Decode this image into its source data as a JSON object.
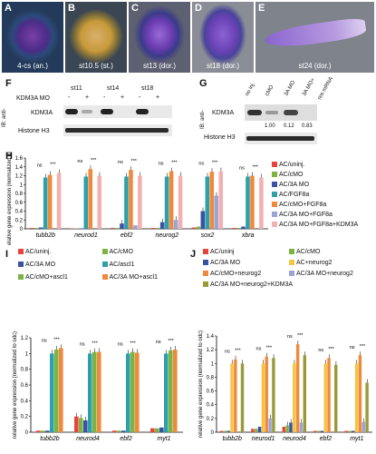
{
  "panels": {
    "A": {
      "letter": "A",
      "caption": "4-cs (an.)"
    },
    "B": {
      "letter": "B",
      "caption": "st10.5 (st.)"
    },
    "C": {
      "letter": "C",
      "caption": "st13 (dor.)"
    },
    "D": {
      "letter": "D",
      "caption": "st18 (dor.)"
    },
    "E": {
      "letter": "E",
      "caption": "st24 (dor.)"
    }
  },
  "F": {
    "letter": "F",
    "stages": [
      "st11",
      "st14",
      "st18"
    ],
    "mo_label": "KDM3A MO",
    "signs": [
      "-",
      "+",
      "-",
      "+",
      "-",
      "+"
    ],
    "wb_label": "IB: anti-",
    "bands": [
      "KDM3A",
      "Histone H3"
    ]
  },
  "G": {
    "letter": "G",
    "lanes": [
      "no inj.",
      "cMO",
      "3A MO",
      "3A MO+",
      "res mRNA"
    ],
    "wb_label": "IB: anti-",
    "bands": [
      "KDM3A",
      "Histone H3"
    ],
    "quant": [
      "1.00",
      "0.12",
      "0.83"
    ]
  },
  "H": {
    "letter": "H",
    "ylabel": "relative gene expression (normalized to odc)",
    "colors": [
      "#e8443a",
      "#7cb342",
      "#3a52a3",
      "#2f9fa8",
      "#ef8a3c",
      "#9aa5d6",
      "#f2b1b0"
    ],
    "legend": [
      "AC/uninj.",
      "AC/cMO",
      "AC/3A MO",
      "AC/FGF8a",
      "AC/cMO+FGF8a",
      "AC/3A MO+FGF8a",
      "AC/3A MO+FGF8a+KDM3A"
    ],
    "sig": [
      "ns",
      "***",
      "***"
    ]
  },
  "I": {
    "letter": "I",
    "ylabel": "relative gene expression (normalized to odc)",
    "legend": [
      "AC/uninj.",
      "AC/cMO",
      "AC/3A MO",
      "AC/ascl1",
      "AC/cMO+ascl1",
      "AC/3A MO+ascl1"
    ],
    "colors": [
      "#e8443a",
      "#7cb342",
      "#3a52a3",
      "#2f9fa8",
      "#7cb342",
      "#ef8a3c"
    ],
    "sig": [
      "ns",
      "***"
    ]
  },
  "J": {
    "letter": "J",
    "ylabel": "relative gene expression (normalized to odc)",
    "legend": [
      "AC/uninj",
      "AC/cMO",
      "AC/3A MO",
      "AC+neurog2",
      "AC/cMO+neurog2",
      "AC/3A MO+neurog2",
      "AC/3A MO+neurog2+KDM3A"
    ],
    "colors": [
      "#e8443a",
      "#7cb342",
      "#3a52a3",
      "#f6c441",
      "#ef8a3c",
      "#9aa5d6",
      "#9a9a3a"
    ],
    "sig": [
      "ns",
      "***"
    ]
  },
  "chart_data": [
    {
      "type": "bar",
      "panel": "H",
      "ylabel": "relative gene expression (normalized to odc)",
      "categories": [
        "tubb2b",
        "neurod1",
        "ebf2",
        "neurog2",
        "sox2",
        "xbra"
      ],
      "ylim": [
        0,
        1.6
      ],
      "yticks": [
        "0",
        "0.2",
        "0.4",
        "0.6",
        "0.8",
        "1",
        "1.2",
        "1.4",
        "1.6"
      ],
      "series": [
        {
          "name": "AC/uninj.",
          "values": [
            0.02,
            0.01,
            0.02,
            0.02,
            0.03,
            0.02
          ]
        },
        {
          "name": "AC/cMO",
          "values": [
            0.02,
            0.01,
            0.02,
            0.02,
            0.05,
            0.02
          ]
        },
        {
          "name": "AC/3A MO",
          "values": [
            0.03,
            0.01,
            0.12,
            0.15,
            0.4,
            0.05
          ]
        },
        {
          "name": "AC/FGF8a",
          "values": [
            1.16,
            1.18,
            1.18,
            1.18,
            1.18,
            1.18
          ]
        },
        {
          "name": "AC/cMO+FGF8a",
          "values": [
            1.22,
            1.35,
            1.33,
            1.3,
            1.29,
            1.2
          ]
        },
        {
          "name": "AC/3A MO+FGF8a",
          "values": [
            0.0,
            0.0,
            0.08,
            0.2,
            0.75,
            0.0
          ]
        },
        {
          "name": "AC/3A MO+FGF8a+KDM3A",
          "values": [
            1.26,
            1.2,
            1.2,
            1.2,
            1.3,
            1.16
          ]
        }
      ]
    },
    {
      "type": "bar",
      "panel": "I",
      "ylabel": "relative gene expression (normalized to odc)",
      "categories": [
        "tubb2b",
        "neurod4",
        "ebf2",
        "myt1"
      ],
      "ylim": [
        0,
        1.2
      ],
      "yticks": [
        "0",
        "0.2",
        "0.4",
        "0.6",
        "0.8",
        "1",
        "1.2"
      ],
      "series": [
        {
          "name": "AC/uninj.",
          "values": [
            0.02,
            0.2,
            0.02,
            0.05
          ]
        },
        {
          "name": "AC/cMO",
          "values": [
            0.02,
            0.18,
            0.02,
            0.05
          ]
        },
        {
          "name": "AC/3A MO",
          "values": [
            0.02,
            0.15,
            0.02,
            0.06
          ]
        },
        {
          "name": "AC/ascl1",
          "values": [
            1.0,
            1.0,
            1.0,
            1.0
          ]
        },
        {
          "name": "AC/cMO+ascl1",
          "values": [
            1.05,
            1.02,
            1.02,
            1.04
          ]
        },
        {
          "name": "AC/3A MO+ascl1",
          "values": [
            1.07,
            1.02,
            1.01,
            1.05
          ]
        }
      ]
    },
    {
      "type": "bar",
      "panel": "J",
      "ylabel": "relative gene expression (normalized to odc)",
      "categories": [
        "tubb2b",
        "neurod1",
        "neurod4",
        "ebf2",
        "myt1"
      ],
      "ylim": [
        0,
        1.4
      ],
      "yticks": [
        "0",
        "0.2",
        "0.4",
        "0.6",
        "0.8",
        "1",
        "1.2",
        "1.4"
      ],
      "series": [
        {
          "name": "AC/uninj",
          "values": [
            0.02,
            0.05,
            0.08,
            0.02,
            0.02
          ]
        },
        {
          "name": "AC/cMO",
          "values": [
            0.02,
            0.05,
            0.1,
            0.02,
            0.02
          ]
        },
        {
          "name": "AC/3A MO",
          "values": [
            0.02,
            0.08,
            0.14,
            0.02,
            0.02
          ]
        },
        {
          "name": "AC+neurog2",
          "values": [
            1.0,
            1.0,
            1.0,
            1.0,
            1.0
          ]
        },
        {
          "name": "AC/cMO+neurog2",
          "values": [
            1.06,
            1.1,
            1.28,
            1.08,
            1.12
          ]
        },
        {
          "name": "AC/3A MO+neurog2",
          "values": [
            0.0,
            0.2,
            0.14,
            0.0,
            0.15
          ]
        },
        {
          "name": "AC/3A MO+neurog2+KDM3A",
          "values": [
            1.0,
            1.08,
            1.12,
            0.98,
            0.72
          ]
        }
      ]
    }
  ]
}
